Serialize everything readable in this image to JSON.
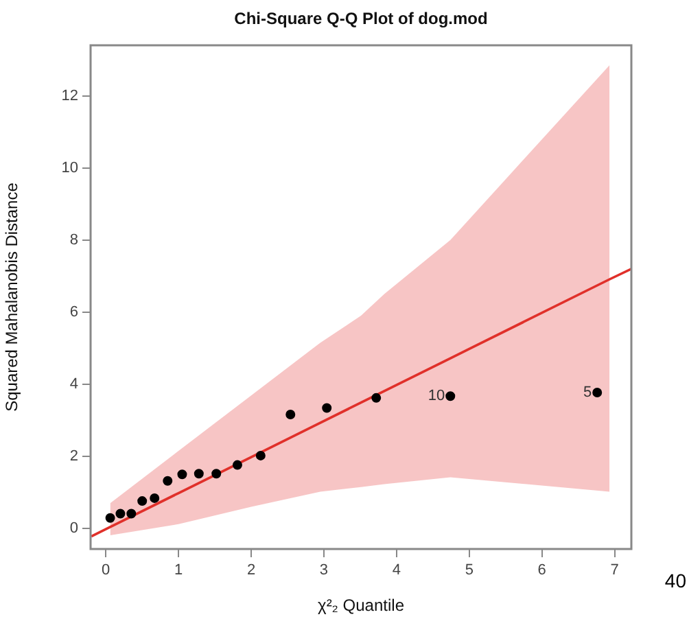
{
  "chart_data": {
    "type": "scatter",
    "title": "Chi-Square Q-Q Plot of dog.mod",
    "xlabel": "χ²₂ Quantile",
    "ylabel": "Squared Mahalanobis Distance",
    "xlim": [
      -0.21,
      7.23
    ],
    "ylim": [
      -0.57,
      13.4
    ],
    "xticks": [
      0,
      1,
      2,
      3,
      4,
      5,
      6,
      7
    ],
    "yticks": [
      0,
      2,
      4,
      6,
      8,
      10,
      12
    ],
    "grid": false,
    "legend": false,
    "series": [
      {
        "color": "#000000",
        "marker": "circle",
        "x": [
          0.06,
          0.2,
          0.35,
          0.5,
          0.67,
          0.85,
          1.05,
          1.28,
          1.52,
          1.81,
          2.13,
          2.54,
          3.04,
          3.72,
          4.74,
          6.76
        ],
        "values": [
          0.29,
          0.41,
          0.41,
          0.76,
          0.84,
          1.32,
          1.5,
          1.52,
          1.52,
          1.76,
          2.02,
          3.16,
          3.34,
          3.62,
          3.67,
          3.77
        ]
      },
      {
        "type": "line",
        "color": "#e0302a",
        "line_style": "solid",
        "marker": "none",
        "x": [
          -0.2,
          0.06,
          1,
          2,
          2.95,
          3.51,
          3.83,
          4.74,
          6.93,
          7.23
        ],
        "values": [
          -0.22,
          0.04,
          0.98,
          1.98,
          2.93,
          3.49,
          3.81,
          4.72,
          6.91,
          7.2
        ],
        "lower": [
          null,
          -0.19,
          0.12,
          0.6,
          1.02,
          1.15,
          1.23,
          1.42,
          1.02,
          null
        ],
        "upper": [
          null,
          0.7,
          2.15,
          3.69,
          5.15,
          5.9,
          6.5,
          8.0,
          12.85,
          null
        ]
      }
    ],
    "annotations": [
      {
        "text": "10",
        "x": 4.74,
        "y": 3.67
      },
      {
        "text": "5",
        "x": 6.76,
        "y": 3.77
      },
      "40"
    ]
  }
}
